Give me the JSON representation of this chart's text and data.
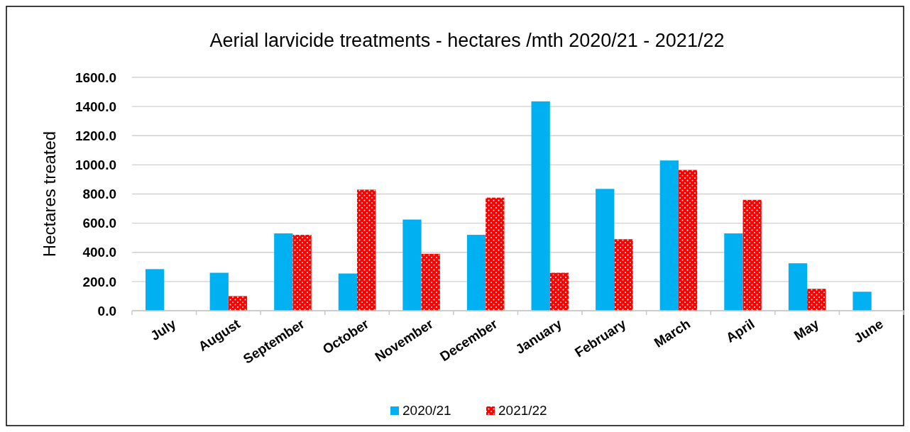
{
  "chart_data": {
    "type": "bar",
    "title": "Aerial larvicide treatments - hectares /mth 2020/21 - 2021/22",
    "ylabel": "Hectares treated",
    "categories": [
      "July",
      "August",
      "September",
      "October",
      "November",
      "December",
      "January",
      "February",
      "March",
      "April",
      "May",
      "June"
    ],
    "series": [
      {
        "name": "2020/21",
        "color": "#00b0f0",
        "values": [
          285,
          260,
          530,
          255,
          625,
          520,
          1435,
          835,
          1030,
          530,
          325,
          130
        ]
      },
      {
        "name": "2021/22",
        "color": "#ff0000",
        "values": [
          null,
          100,
          520,
          830,
          390,
          775,
          260,
          490,
          965,
          760,
          150,
          null
        ]
      }
    ],
    "ylim": [
      0,
      1600
    ],
    "yticks": [
      {
        "value": 0,
        "label": "0.0"
      },
      {
        "value": 200,
        "label": "200.0"
      },
      {
        "value": 400,
        "label": "400.0"
      },
      {
        "value": 600,
        "label": "600.0"
      },
      {
        "value": 800,
        "label": "800.0"
      },
      {
        "value": 1000,
        "label": "1000.0"
      },
      {
        "value": 1200,
        "label": "1200.0"
      },
      {
        "value": 1400,
        "label": "1400.0"
      },
      {
        "value": 1600,
        "label": "1600.0"
      }
    ],
    "grid": "y",
    "legend": "bottom"
  }
}
